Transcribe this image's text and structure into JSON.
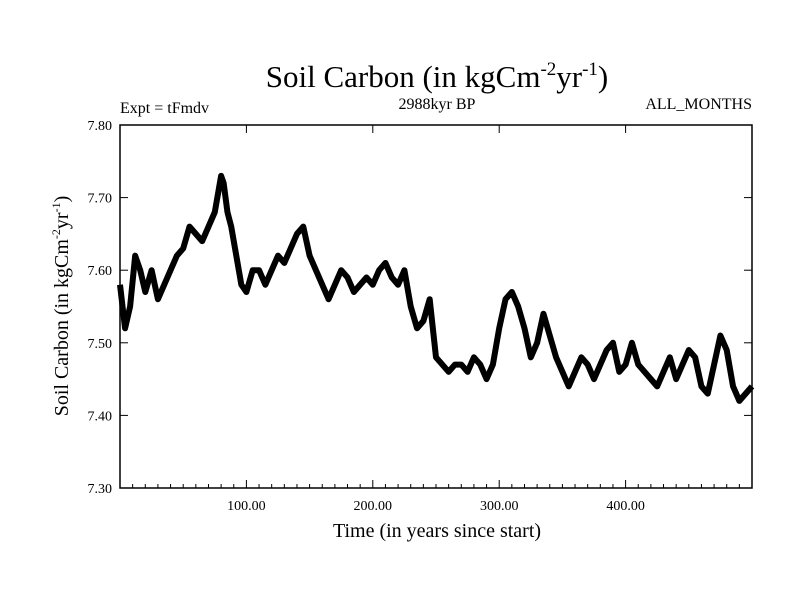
{
  "header": {
    "title_main": "Soil Carbon (in kgCm",
    "title_sup1": "-2",
    "title_mid": "yr",
    "title_sup2": "-1",
    "title_end": ")",
    "expt_label": "Expt = tFmdv",
    "period_label": "2988kyr BP",
    "months_label": "ALL_MONTHS"
  },
  "chart_data": {
    "type": "line",
    "title": "Soil Carbon (in kgCm-2yr-1)",
    "xlabel": "Time (in years since start)",
    "ylabel": "Soil Carbon (in kgCm-2yr-1)",
    "ylabel_parts": {
      "main": "Soil Carbon (in kgCm",
      "sup1": "-2",
      "mid": "yr",
      "sup2": "-1",
      "end": ")"
    },
    "xlim": [
      0,
      500
    ],
    "ylim": [
      7.3,
      7.8
    ],
    "x_ticks": [
      100,
      200,
      300,
      400
    ],
    "x_tick_labels": [
      "100.00",
      "200.00",
      "300.00",
      "400.00"
    ],
    "y_ticks": [
      7.3,
      7.4,
      7.5,
      7.6,
      7.7,
      7.8
    ],
    "y_tick_labels": [
      "7.30",
      "7.40",
      "7.50",
      "7.60",
      "7.70",
      "7.80"
    ],
    "grid": false,
    "line_color": "#000000",
    "series": [
      {
        "x": [
          0,
          4,
          8,
          12,
          16,
          20,
          25,
          30,
          35,
          40,
          45,
          50,
          55,
          60,
          65,
          70,
          75,
          80,
          82,
          85,
          88,
          92,
          96,
          100,
          105,
          110,
          115,
          120,
          125,
          130,
          135,
          140,
          145,
          150,
          155,
          160,
          165,
          170,
          175,
          180,
          185,
          190,
          195,
          200,
          205,
          210,
          215,
          220,
          225,
          230,
          235,
          240,
          245,
          250,
          255,
          260,
          265,
          270,
          275,
          280,
          285,
          290,
          295,
          300,
          305,
          310,
          315,
          320,
          325,
          330,
          335,
          340,
          345,
          350,
          355,
          360,
          365,
          370,
          375,
          380,
          385,
          390,
          395,
          400,
          405,
          410,
          415,
          420,
          425,
          430,
          435,
          440,
          445,
          450,
          455,
          460,
          465,
          470,
          475,
          480,
          485,
          490,
          495,
          500
        ],
        "values": [
          7.58,
          7.52,
          7.55,
          7.62,
          7.6,
          7.57,
          7.6,
          7.56,
          7.58,
          7.6,
          7.62,
          7.63,
          7.66,
          7.65,
          7.64,
          7.66,
          7.68,
          7.73,
          7.72,
          7.68,
          7.66,
          7.62,
          7.58,
          7.57,
          7.6,
          7.6,
          7.58,
          7.6,
          7.62,
          7.61,
          7.63,
          7.65,
          7.66,
          7.62,
          7.6,
          7.58,
          7.56,
          7.58,
          7.6,
          7.59,
          7.57,
          7.58,
          7.59,
          7.58,
          7.6,
          7.61,
          7.59,
          7.58,
          7.6,
          7.55,
          7.52,
          7.53,
          7.56,
          7.48,
          7.47,
          7.46,
          7.47,
          7.47,
          7.46,
          7.48,
          7.47,
          7.45,
          7.47,
          7.52,
          7.56,
          7.57,
          7.55,
          7.52,
          7.48,
          7.5,
          7.54,
          7.51,
          7.48,
          7.46,
          7.44,
          7.46,
          7.48,
          7.47,
          7.45,
          7.47,
          7.49,
          7.5,
          7.46,
          7.47,
          7.5,
          7.47,
          7.46,
          7.45,
          7.44,
          7.46,
          7.48,
          7.45,
          7.47,
          7.49,
          7.48,
          7.44,
          7.43,
          7.47,
          7.51,
          7.49,
          7.44,
          7.42,
          7.43,
          7.44
        ]
      }
    ]
  }
}
